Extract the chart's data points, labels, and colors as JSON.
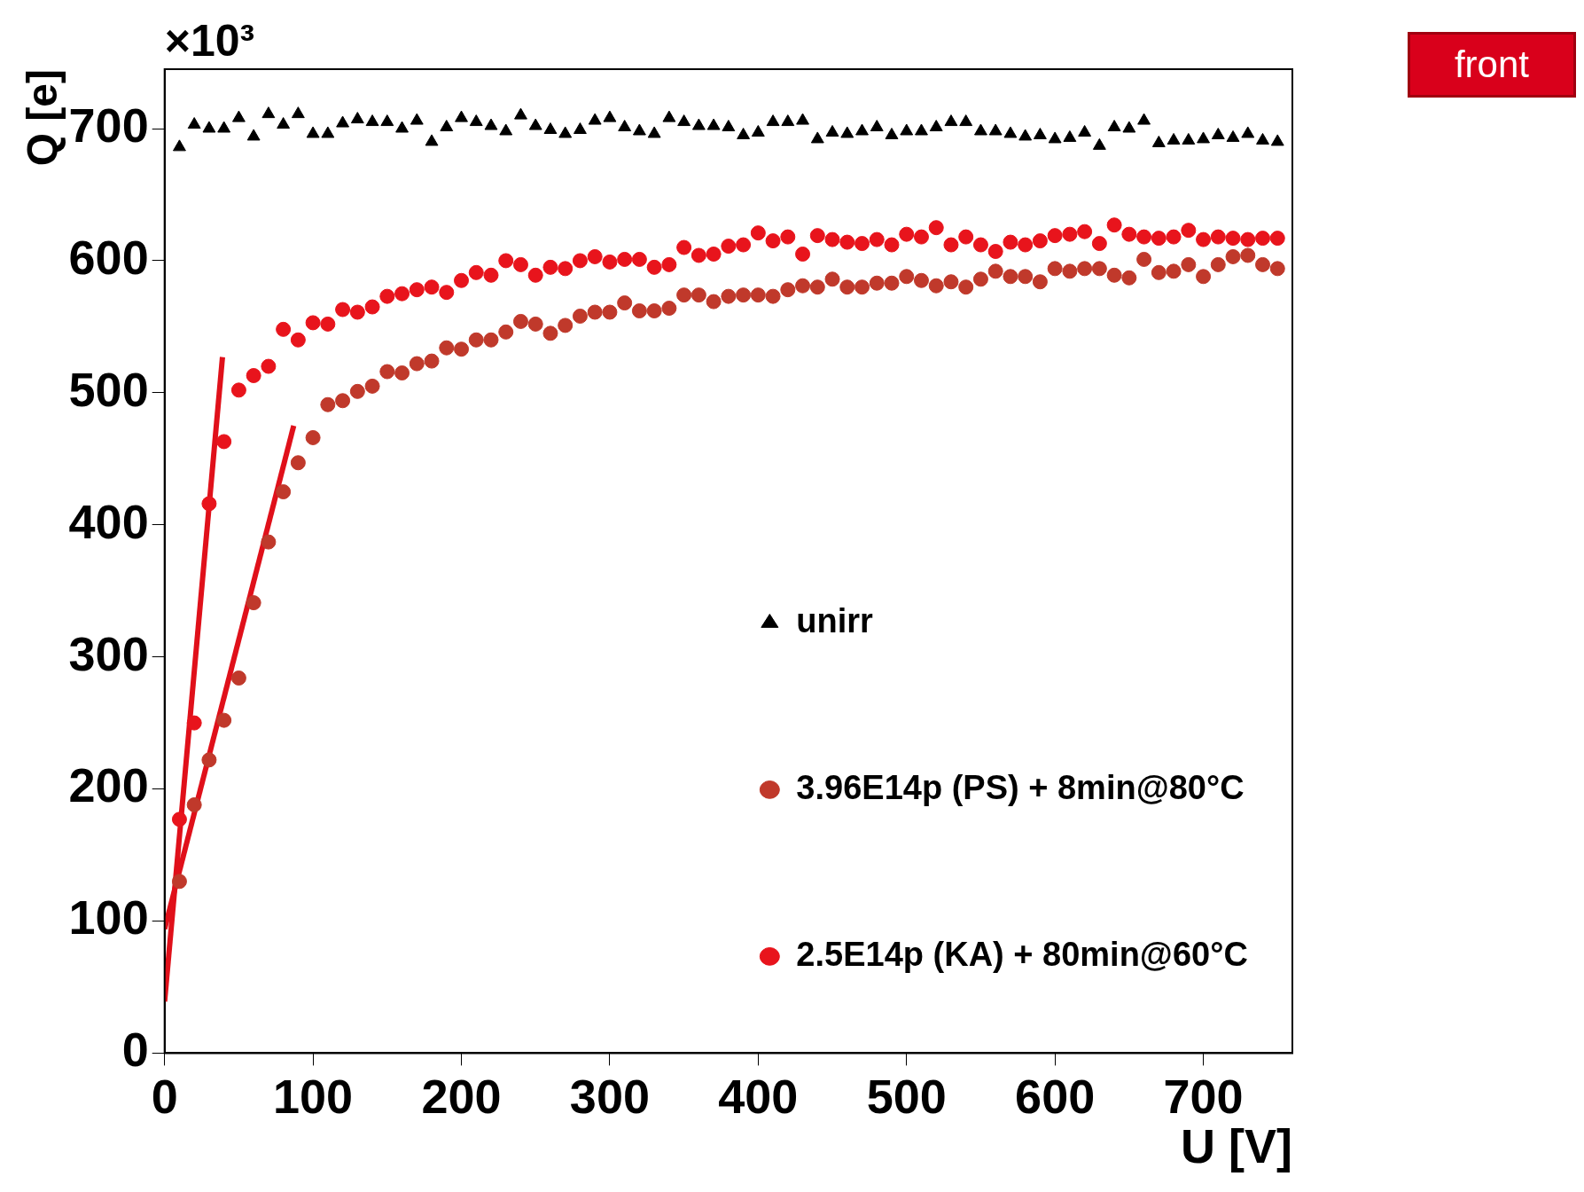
{
  "chart_data": {
    "type": "scatter",
    "xlabel": "U [V]",
    "ylabel": "Q [e]",
    "annotations": [
      "×10³",
      "front"
    ],
    "xlim": [
      0,
      760
    ],
    "ylim": [
      0,
      745
    ],
    "xticks": [
      0,
      100,
      200,
      300,
      400,
      500,
      600,
      700
    ],
    "yticks": [
      0,
      100,
      200,
      300,
      400,
      500,
      600,
      700
    ],
    "grid": false,
    "legend": "right",
    "marker": "circle",
    "series": [
      {
        "name": "unirr",
        "color": "#000000",
        "marker": "triangle",
        "x": [
          10,
          20,
          30,
          40,
          50,
          60,
          70,
          80,
          90,
          100,
          110,
          120,
          130,
          140,
          150,
          160,
          170,
          180,
          190,
          200,
          210,
          220,
          230,
          240,
          250,
          260,
          270,
          280,
          290,
          300,
          310,
          320,
          330,
          340,
          350,
          360,
          370,
          380,
          390,
          400,
          410,
          420,
          430,
          440,
          450,
          460,
          470,
          480,
          490,
          500,
          510,
          520,
          530,
          540,
          550,
          560,
          570,
          580,
          590,
          600,
          610,
          620,
          630,
          640,
          650,
          660,
          670,
          680,
          690,
          700,
          710,
          720,
          730,
          740,
          750
        ],
        "values": [
          686,
          703,
          700,
          700,
          708,
          694,
          711,
          703,
          711,
          696,
          696,
          704,
          707,
          705,
          705,
          700,
          706,
          690,
          701,
          708,
          705,
          702,
          698,
          710,
          702,
          699,
          696,
          699,
          706,
          708,
          701,
          698,
          696,
          708,
          705,
          702,
          702,
          701,
          695,
          697,
          705,
          705,
          706,
          692,
          697,
          696,
          698,
          701,
          695,
          698,
          698,
          701,
          705,
          705,
          698,
          698,
          696,
          694,
          695,
          692,
          693,
          697,
          687,
          701,
          700,
          706,
          689,
          691,
          691,
          692,
          695,
          693,
          696,
          691,
          690
        ]
      },
      {
        "name": "3.96E14p (PS) + 8min@80°C",
        "color": "#c0392b",
        "x": [
          10,
          20,
          30,
          40,
          50,
          60,
          70,
          80,
          90,
          100,
          110,
          120,
          130,
          140,
          150,
          160,
          170,
          180,
          190,
          200,
          210,
          220,
          230,
          240,
          250,
          260,
          270,
          280,
          290,
          300,
          310,
          320,
          330,
          340,
          350,
          360,
          370,
          380,
          390,
          400,
          410,
          420,
          430,
          440,
          450,
          460,
          470,
          480,
          490,
          500,
          510,
          520,
          530,
          540,
          550,
          560,
          570,
          580,
          590,
          600,
          610,
          620,
          630,
          640,
          650,
          660,
          670,
          680,
          690,
          700,
          710,
          720,
          730,
          740,
          750
        ],
        "values": [
          130,
          188,
          222,
          252,
          284,
          341,
          387,
          425,
          447,
          466,
          491,
          494,
          501,
          505,
          516,
          515,
          522,
          524,
          534,
          533,
          540,
          540,
          546,
          554,
          552,
          545,
          551,
          558,
          561,
          561,
          568,
          562,
          562,
          564,
          574,
          574,
          569,
          573,
          574,
          574,
          573,
          578,
          581,
          580,
          586,
          580,
          580,
          583,
          583,
          588,
          585,
          581,
          584,
          580,
          586,
          592,
          588,
          588,
          584,
          594,
          592,
          594,
          594,
          589,
          587,
          601,
          591,
          592,
          597,
          588,
          597,
          603,
          604,
          597,
          594
        ]
      },
      {
        "name": "2.5E14p (KA) + 80min@60°C",
        "color": "#e8141c",
        "x": [
          10,
          20,
          30,
          40,
          50,
          60,
          70,
          80,
          90,
          100,
          110,
          120,
          130,
          140,
          150,
          160,
          170,
          180,
          190,
          200,
          210,
          220,
          230,
          240,
          250,
          260,
          270,
          280,
          290,
          300,
          310,
          320,
          330,
          340,
          350,
          360,
          370,
          380,
          390,
          400,
          410,
          420,
          430,
          440,
          450,
          460,
          470,
          480,
          490,
          500,
          510,
          520,
          530,
          540,
          550,
          560,
          570,
          580,
          590,
          600,
          610,
          620,
          630,
          640,
          650,
          660,
          670,
          680,
          690,
          700,
          710,
          720,
          730,
          740,
          750
        ],
        "values": [
          177,
          250,
          416,
          463,
          502,
          513,
          520,
          548,
          540,
          553,
          552,
          563,
          561,
          565,
          573,
          575,
          578,
          580,
          576,
          585,
          591,
          589,
          600,
          597,
          589,
          595,
          594,
          600,
          603,
          599,
          601,
          601,
          595,
          597,
          610,
          604,
          605,
          611,
          612,
          621,
          615,
          618,
          605,
          619,
          616,
          614,
          613,
          616,
          612,
          620,
          618,
          625,
          612,
          618,
          612,
          607,
          614,
          612,
          615,
          619,
          620,
          622,
          613,
          627,
          620,
          618,
          617,
          618,
          623,
          616,
          618,
          617,
          616,
          617,
          617
        ]
      },
      {
        "type": "line",
        "color": "#e0101a",
        "marker": "none",
        "x": [
          0,
          39
        ],
        "values": [
          39,
          527
        ]
      },
      {
        "type": "line",
        "color": "#e0101a",
        "marker": "none",
        "x": [
          0,
          87
        ],
        "values": [
          94,
          475
        ]
      }
    ]
  }
}
